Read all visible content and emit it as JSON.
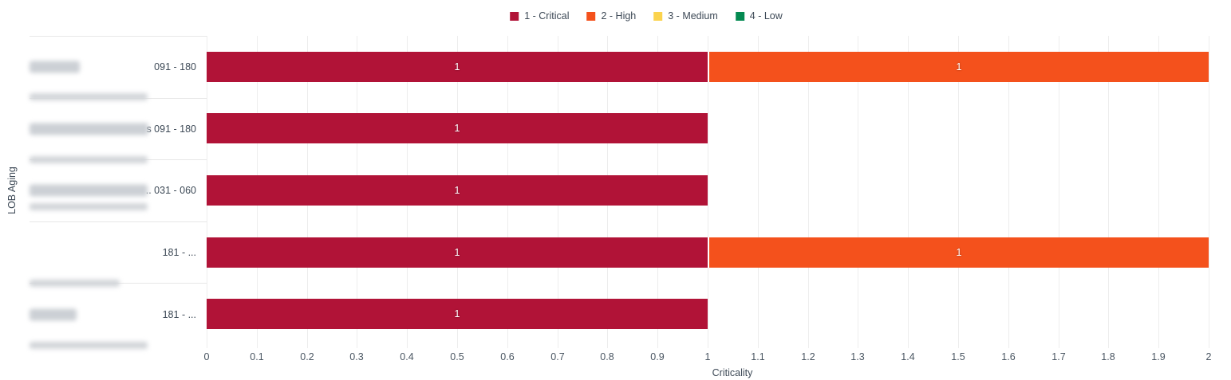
{
  "legend": {
    "items": [
      {
        "label": "1 - Critical",
        "color": "#b11337"
      },
      {
        "label": "2 - High",
        "color": "#f4511c"
      },
      {
        "label": "3 - Medium",
        "color": "#fbd34d"
      },
      {
        "label": "4 - Low",
        "color": "#048a51"
      }
    ]
  },
  "y_axis": {
    "title": "LOB Aging"
  },
  "x_axis": {
    "title": "Criticality",
    "min": 0,
    "max": 2,
    "ticks": [
      "0",
      "0.1",
      "0.2",
      "0.3",
      "0.4",
      "0.5",
      "0.6",
      "0.7",
      "0.8",
      "0.9",
      "1",
      "1.1",
      "1.2",
      "1.3",
      "1.4",
      "1.5",
      "1.6",
      "1.7",
      "1.8",
      "1.9",
      "2"
    ]
  },
  "rows": [
    {
      "lob": "(redacted)",
      "remnant": "",
      "aging": "091 - 180",
      "blur_width": 63
    },
    {
      "lob": "(redacted)",
      "remnant": "s",
      "aging": "091 - 180",
      "blur_width": 149
    },
    {
      "lob": "(redacted)",
      "remnant": "..",
      "aging": "031 - 060",
      "blur_width": 148
    },
    {
      "lob": "",
      "remnant": "",
      "aging": "181 - ...",
      "blur_width": 0
    },
    {
      "lob": "(redacted)",
      "remnant": "",
      "aging": "181 - ...",
      "blur_width": 59
    }
  ],
  "chart_data": {
    "type": "bar",
    "orientation": "horizontal",
    "stacked": true,
    "title": "",
    "xlabel": "Criticality",
    "ylabel": "LOB Aging",
    "xlim": [
      0,
      2
    ],
    "grid": "vertical",
    "legend_position": "top-center",
    "categories": [
      {
        "lob": "(redacted)",
        "aging": "091 - 180"
      },
      {
        "lob": "(redacted)s",
        "aging": "091 - 180"
      },
      {
        "lob": "(redacted)..",
        "aging": "031 - 060"
      },
      {
        "lob": "",
        "aging": "181 - ..."
      },
      {
        "lob": "(redacted)",
        "aging": "181 - ..."
      }
    ],
    "series": [
      {
        "name": "1 - Critical",
        "color": "#b11337",
        "values": [
          1,
          1,
          1,
          1,
          1
        ]
      },
      {
        "name": "2 - High",
        "color": "#f4511c",
        "values": [
          1,
          0,
          0,
          1,
          0
        ]
      },
      {
        "name": "3 - Medium",
        "color": "#fbd34d",
        "values": [
          0,
          0,
          0,
          0,
          0
        ]
      },
      {
        "name": "4 - Low",
        "color": "#048a51",
        "values": [
          0,
          0,
          0,
          0,
          0
        ]
      }
    ]
  }
}
